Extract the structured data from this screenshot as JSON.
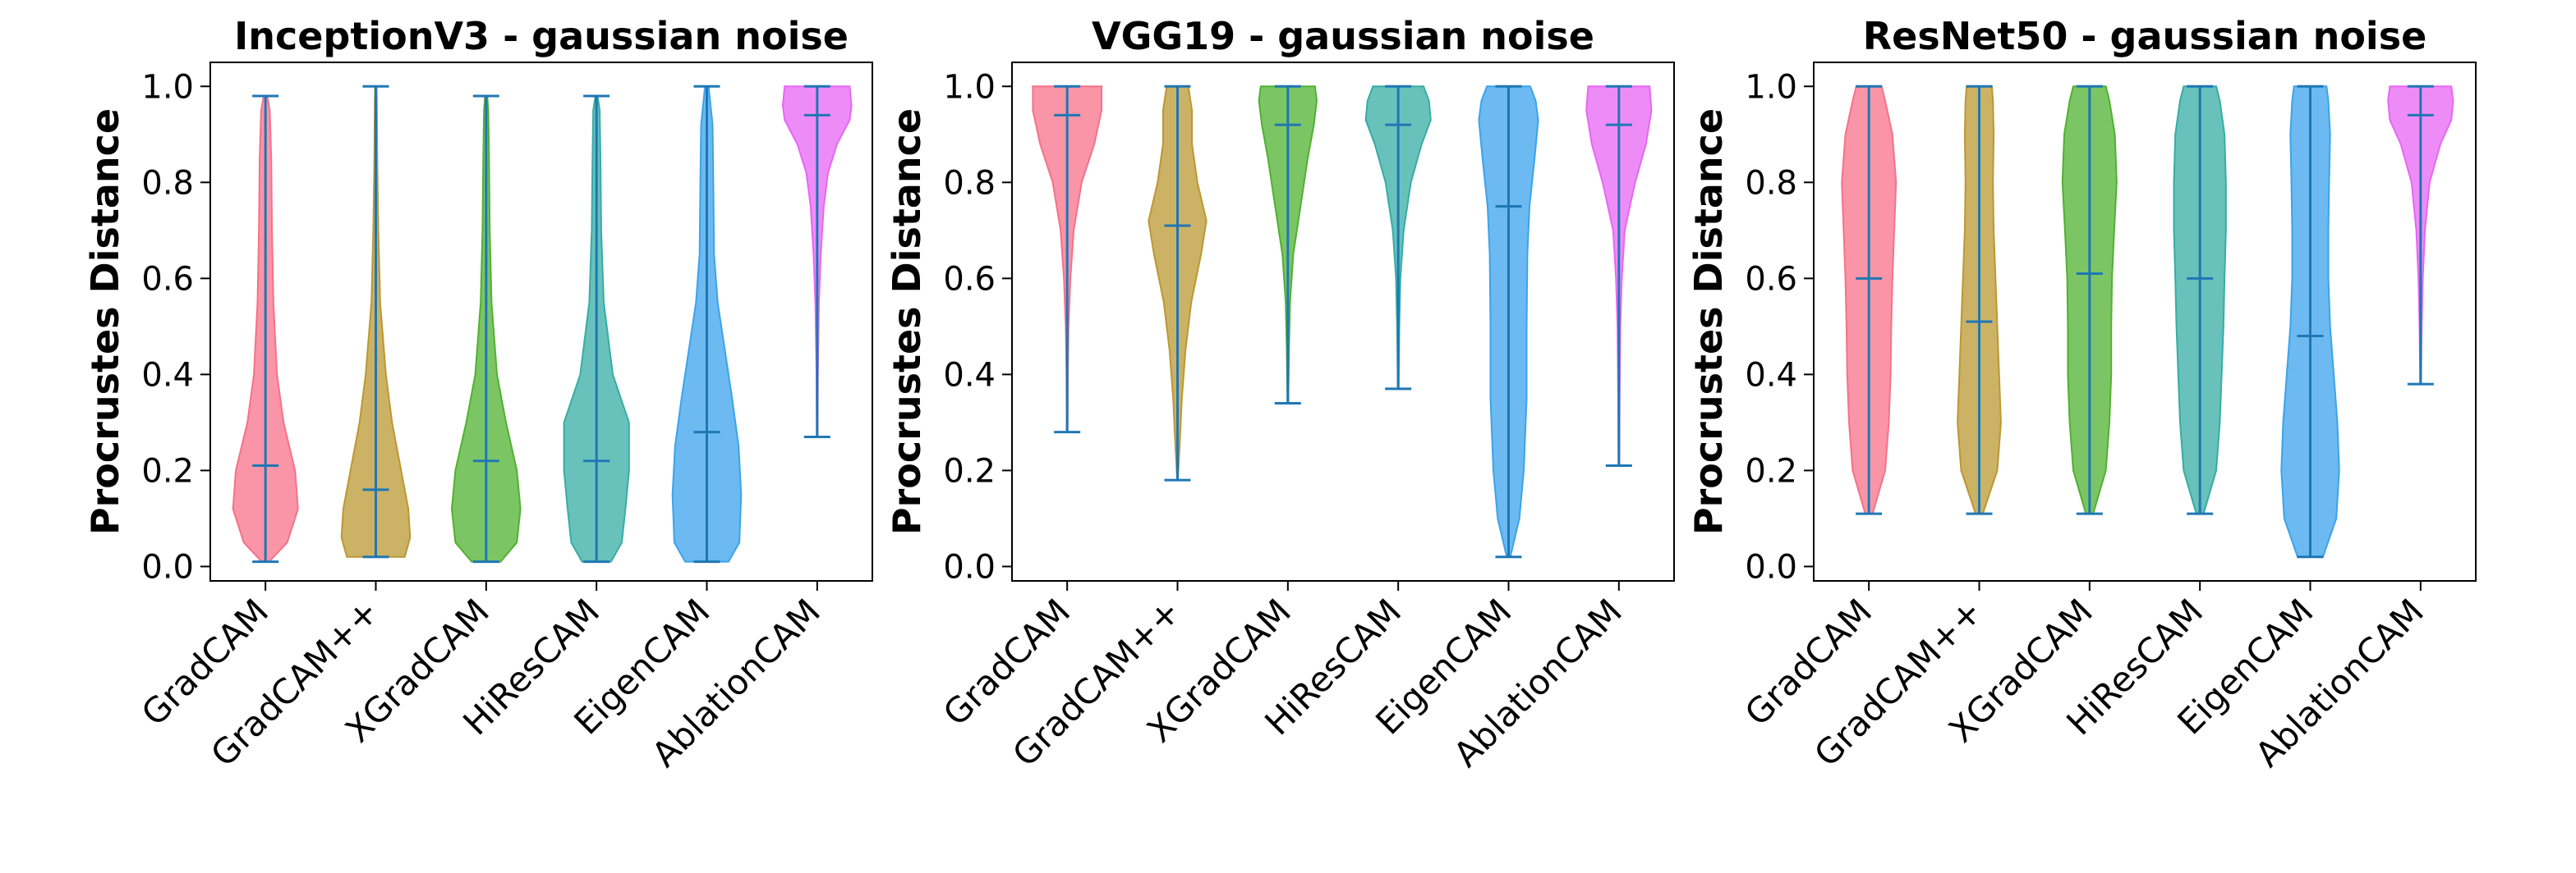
{
  "chart_data": [
    {
      "type": "violin",
      "title": "InceptionV3 - gaussian noise",
      "ylabel": "Procrustes Distance",
      "xlabel": "",
      "ylim": [
        -0.03,
        1.05
      ],
      "yticks": [
        "0.0",
        "0.2",
        "0.4",
        "0.6",
        "0.8",
        "1.0"
      ],
      "categories": [
        "GradCAM",
        "GradCAM++",
        "XGradCAM",
        "HiResCAM",
        "EigenCAM",
        "AblationCAM"
      ],
      "violins": [
        {
          "min": 0.01,
          "max": 0.98,
          "median": 0.21,
          "shape": [
            [
              0.01,
              0.1
            ],
            [
              0.05,
              0.6
            ],
            [
              0.12,
              0.9
            ],
            [
              0.2,
              0.82
            ],
            [
              0.3,
              0.5
            ],
            [
              0.4,
              0.32
            ],
            [
              0.55,
              0.22
            ],
            [
              0.7,
              0.18
            ],
            [
              0.85,
              0.16
            ],
            [
              0.95,
              0.12
            ],
            [
              0.98,
              0.05
            ]
          ]
        },
        {
          "min": 0.02,
          "max": 1.0,
          "median": 0.16,
          "shape": [
            [
              0.02,
              0.8
            ],
            [
              0.06,
              0.95
            ],
            [
              0.12,
              0.9
            ],
            [
              0.2,
              0.7
            ],
            [
              0.3,
              0.45
            ],
            [
              0.4,
              0.28
            ],
            [
              0.55,
              0.12
            ],
            [
              0.7,
              0.07
            ],
            [
              0.85,
              0.04
            ],
            [
              0.97,
              0.03
            ],
            [
              1.0,
              0.02
            ]
          ]
        },
        {
          "min": 0.01,
          "max": 0.98,
          "median": 0.22,
          "shape": [
            [
              0.01,
              0.4
            ],
            [
              0.05,
              0.85
            ],
            [
              0.12,
              0.95
            ],
            [
              0.2,
              0.85
            ],
            [
              0.3,
              0.55
            ],
            [
              0.4,
              0.3
            ],
            [
              0.55,
              0.15
            ],
            [
              0.7,
              0.1
            ],
            [
              0.85,
              0.08
            ],
            [
              0.95,
              0.06
            ],
            [
              0.98,
              0.03
            ]
          ]
        },
        {
          "min": 0.01,
          "max": 0.98,
          "median": 0.22,
          "shape": [
            [
              0.01,
              0.4
            ],
            [
              0.05,
              0.7
            ],
            [
              0.12,
              0.8
            ],
            [
              0.2,
              0.9
            ],
            [
              0.3,
              0.9
            ],
            [
              0.4,
              0.45
            ],
            [
              0.55,
              0.2
            ],
            [
              0.7,
              0.13
            ],
            [
              0.85,
              0.11
            ],
            [
              0.95,
              0.09
            ],
            [
              0.98,
              0.03
            ]
          ]
        },
        {
          "min": 0.01,
          "max": 1.0,
          "median": 0.28,
          "shape": [
            [
              0.01,
              0.6
            ],
            [
              0.05,
              0.9
            ],
            [
              0.15,
              0.95
            ],
            [
              0.25,
              0.88
            ],
            [
              0.35,
              0.7
            ],
            [
              0.45,
              0.5
            ],
            [
              0.55,
              0.3
            ],
            [
              0.65,
              0.2
            ],
            [
              0.8,
              0.18
            ],
            [
              0.92,
              0.16
            ],
            [
              1.0,
              0.05
            ]
          ]
        },
        {
          "min": 0.27,
          "max": 1.0,
          "median": 0.94,
          "shape": [
            [
              0.27,
              0.01
            ],
            [
              0.4,
              0.02
            ],
            [
              0.55,
              0.05
            ],
            [
              0.65,
              0.1
            ],
            [
              0.75,
              0.18
            ],
            [
              0.82,
              0.3
            ],
            [
              0.88,
              0.55
            ],
            [
              0.93,
              0.9
            ],
            [
              0.96,
              0.95
            ],
            [
              1.0,
              0.9
            ]
          ]
        }
      ]
    },
    {
      "type": "violin",
      "title": "VGG19 - gaussian noise",
      "ylabel": "Procrustes Distance",
      "xlabel": "",
      "ylim": [
        -0.03,
        1.05
      ],
      "yticks": [
        "0.0",
        "0.2",
        "0.4",
        "0.6",
        "0.8",
        "1.0"
      ],
      "categories": [
        "GradCAM",
        "GradCAM++",
        "XGradCAM",
        "HiResCAM",
        "EigenCAM",
        "AblationCAM"
      ],
      "violins": [
        {
          "min": 0.28,
          "max": 1.0,
          "median": 0.94,
          "shape": [
            [
              0.28,
              0.01
            ],
            [
              0.4,
              0.02
            ],
            [
              0.5,
              0.04
            ],
            [
              0.6,
              0.09
            ],
            [
              0.7,
              0.18
            ],
            [
              0.8,
              0.4
            ],
            [
              0.88,
              0.75
            ],
            [
              0.95,
              0.95
            ],
            [
              1.0,
              0.95
            ]
          ]
        },
        {
          "min": 0.18,
          "max": 1.0,
          "median": 0.71,
          "shape": [
            [
              0.18,
              0.01
            ],
            [
              0.25,
              0.06
            ],
            [
              0.35,
              0.12
            ],
            [
              0.45,
              0.22
            ],
            [
              0.55,
              0.38
            ],
            [
              0.65,
              0.65
            ],
            [
              0.72,
              0.8
            ],
            [
              0.8,
              0.55
            ],
            [
              0.88,
              0.4
            ],
            [
              0.95,
              0.4
            ],
            [
              1.0,
              0.3
            ]
          ]
        },
        {
          "min": 0.34,
          "max": 1.0,
          "median": 0.92,
          "shape": [
            [
              0.34,
              0.01
            ],
            [
              0.45,
              0.03
            ],
            [
              0.55,
              0.06
            ],
            [
              0.65,
              0.15
            ],
            [
              0.75,
              0.35
            ],
            [
              0.85,
              0.55
            ],
            [
              0.92,
              0.72
            ],
            [
              0.97,
              0.8
            ],
            [
              1.0,
              0.75
            ]
          ]
        },
        {
          "min": 0.37,
          "max": 1.0,
          "median": 0.92,
          "shape": [
            [
              0.37,
              0.01
            ],
            [
              0.5,
              0.03
            ],
            [
              0.6,
              0.06
            ],
            [
              0.7,
              0.15
            ],
            [
              0.8,
              0.35
            ],
            [
              0.88,
              0.65
            ],
            [
              0.93,
              0.9
            ],
            [
              0.97,
              0.85
            ],
            [
              1.0,
              0.7
            ]
          ]
        },
        {
          "min": 0.02,
          "max": 1.0,
          "median": 0.75,
          "shape": [
            [
              0.02,
              0.05
            ],
            [
              0.1,
              0.3
            ],
            [
              0.2,
              0.42
            ],
            [
              0.35,
              0.5
            ],
            [
              0.5,
              0.5
            ],
            [
              0.65,
              0.52
            ],
            [
              0.75,
              0.58
            ],
            [
              0.85,
              0.72
            ],
            [
              0.93,
              0.82
            ],
            [
              0.97,
              0.75
            ],
            [
              1.0,
              0.6
            ]
          ]
        },
        {
          "min": 0.21,
          "max": 1.0,
          "median": 0.92,
          "shape": [
            [
              0.21,
              0.01
            ],
            [
              0.35,
              0.02
            ],
            [
              0.5,
              0.04
            ],
            [
              0.6,
              0.08
            ],
            [
              0.7,
              0.16
            ],
            [
              0.8,
              0.45
            ],
            [
              0.88,
              0.75
            ],
            [
              0.95,
              0.9
            ],
            [
              1.0,
              0.85
            ]
          ]
        }
      ]
    },
    {
      "type": "violin",
      "title": "ResNet50 - gaussian noise",
      "ylabel": "Procrustes Distance",
      "xlabel": "",
      "ylim": [
        -0.03,
        1.05
      ],
      "yticks": [
        "0.0",
        "0.2",
        "0.4",
        "0.6",
        "0.8",
        "1.0"
      ],
      "categories": [
        "GradCAM",
        "GradCAM++",
        "XGradCAM",
        "HiResCAM",
        "EigenCAM",
        "AblationCAM"
      ],
      "violins": [
        {
          "min": 0.11,
          "max": 1.0,
          "median": 0.6,
          "shape": [
            [
              0.11,
              0.1
            ],
            [
              0.2,
              0.45
            ],
            [
              0.3,
              0.55
            ],
            [
              0.4,
              0.6
            ],
            [
              0.5,
              0.62
            ],
            [
              0.6,
              0.65
            ],
            [
              0.7,
              0.7
            ],
            [
              0.8,
              0.75
            ],
            [
              0.9,
              0.65
            ],
            [
              0.97,
              0.45
            ],
            [
              1.0,
              0.35
            ]
          ]
        },
        {
          "min": 0.11,
          "max": 1.0,
          "median": 0.51,
          "shape": [
            [
              0.11,
              0.1
            ],
            [
              0.2,
              0.5
            ],
            [
              0.3,
              0.6
            ],
            [
              0.4,
              0.55
            ],
            [
              0.5,
              0.5
            ],
            [
              0.6,
              0.45
            ],
            [
              0.7,
              0.4
            ],
            [
              0.8,
              0.38
            ],
            [
              0.9,
              0.4
            ],
            [
              0.97,
              0.38
            ],
            [
              1.0,
              0.35
            ]
          ]
        },
        {
          "min": 0.11,
          "max": 1.0,
          "median": 0.61,
          "shape": [
            [
              0.11,
              0.1
            ],
            [
              0.2,
              0.45
            ],
            [
              0.3,
              0.55
            ],
            [
              0.4,
              0.6
            ],
            [
              0.5,
              0.6
            ],
            [
              0.6,
              0.62
            ],
            [
              0.7,
              0.68
            ],
            [
              0.8,
              0.75
            ],
            [
              0.9,
              0.7
            ],
            [
              0.97,
              0.55
            ],
            [
              1.0,
              0.45
            ]
          ]
        },
        {
          "min": 0.11,
          "max": 1.0,
          "median": 0.6,
          "shape": [
            [
              0.11,
              0.1
            ],
            [
              0.2,
              0.45
            ],
            [
              0.3,
              0.55
            ],
            [
              0.4,
              0.6
            ],
            [
              0.5,
              0.65
            ],
            [
              0.6,
              0.68
            ],
            [
              0.7,
              0.72
            ],
            [
              0.8,
              0.72
            ],
            [
              0.9,
              0.68
            ],
            [
              0.97,
              0.55
            ],
            [
              1.0,
              0.45
            ]
          ]
        },
        {
          "min": 0.02,
          "max": 1.0,
          "median": 0.48,
          "shape": [
            [
              0.02,
              0.35
            ],
            [
              0.1,
              0.72
            ],
            [
              0.2,
              0.8
            ],
            [
              0.3,
              0.75
            ],
            [
              0.4,
              0.65
            ],
            [
              0.5,
              0.55
            ],
            [
              0.6,
              0.5
            ],
            [
              0.7,
              0.5
            ],
            [
              0.8,
              0.52
            ],
            [
              0.9,
              0.55
            ],
            [
              0.97,
              0.5
            ],
            [
              1.0,
              0.45
            ]
          ]
        },
        {
          "min": 0.38,
          "max": 1.0,
          "median": 0.94,
          "shape": [
            [
              0.38,
              0.01
            ],
            [
              0.5,
              0.03
            ],
            [
              0.6,
              0.06
            ],
            [
              0.7,
              0.12
            ],
            [
              0.8,
              0.25
            ],
            [
              0.88,
              0.55
            ],
            [
              0.93,
              0.85
            ],
            [
              0.97,
              0.9
            ],
            [
              1.0,
              0.85
            ]
          ]
        }
      ]
    }
  ],
  "colors": [
    "#f77189",
    "#bb9832",
    "#50b131",
    "#36ada4",
    "#3ba3ec",
    "#e866f4"
  ],
  "line_color": "#1f77b4"
}
